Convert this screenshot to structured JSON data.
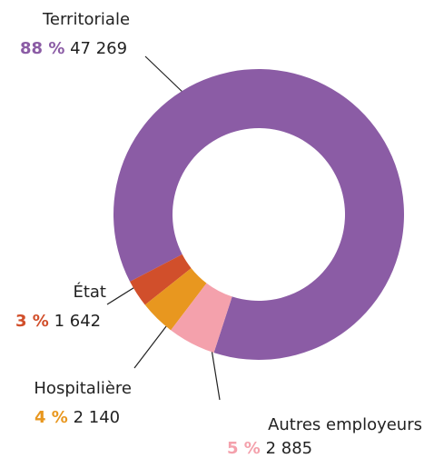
{
  "chart_data": {
    "type": "donut",
    "categories": [
      "Territoriale",
      "État",
      "Hospitalière",
      "Autres employeurs"
    ],
    "values": [
      47269,
      1642,
      2140,
      2885
    ],
    "value_labels": [
      "47 269",
      "1 642",
      "2 140",
      "2 885"
    ],
    "shares": [
      88,
      3,
      4,
      5
    ],
    "share_labels": [
      "88 %",
      "3 %",
      "4 %",
      "5 %"
    ],
    "colors": [
      "#8b5ca5",
      "#d14f2b",
      "#e8971f",
      "#f4a1ac"
    ]
  }
}
